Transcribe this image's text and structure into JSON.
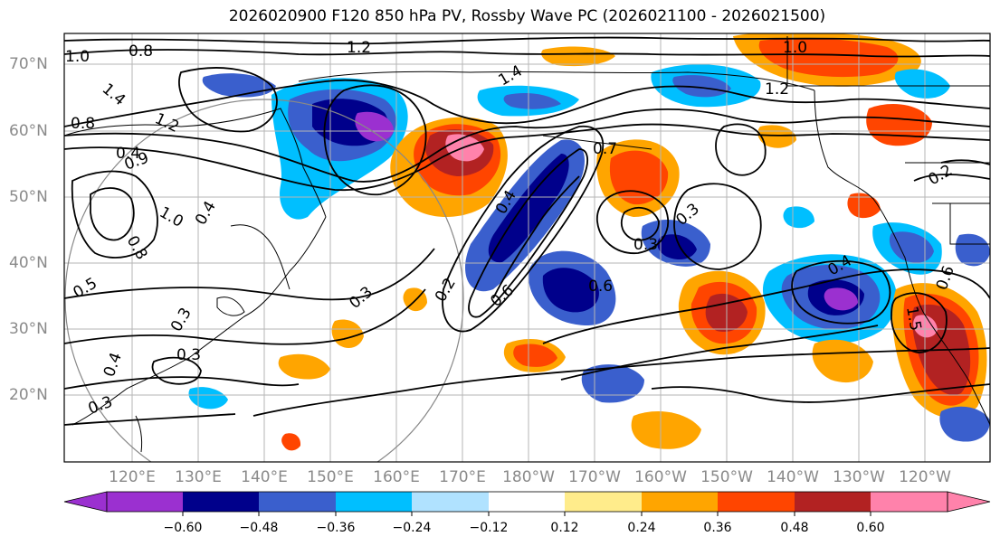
{
  "title": "2026020900 F120 850 hPa PV, Rossby Wave PC (2026021100 - 2026021500)",
  "lat_labels": [
    "70°N",
    "60°N",
    "50°N",
    "40°N",
    "30°N",
    "20°N"
  ],
  "lon_labels": [
    "120°E",
    "130°E",
    "140°E",
    "150°E",
    "160°E",
    "170°E",
    "180°W",
    "170°W",
    "160°W",
    "150°W",
    "140°W",
    "130°W",
    "120°W"
  ],
  "colorbar": {
    "tick_labels": [
      "−0.60",
      "−0.48",
      "−0.36",
      "−0.24",
      "−0.12",
      "0.12",
      "0.24",
      "0.36",
      "0.48",
      "0.60"
    ],
    "colors": [
      "#9b30d0",
      "#00008b",
      "#3a5fcd",
      "#00bfff",
      "#b0e2ff",
      "#ffffff",
      "#ffec8b",
      "#ffa500",
      "#ff4500",
      "#b22222",
      "#ff82ab",
      "#ff82ab"
    ]
  },
  "contour_labels": [
    "1.2",
    "1.0",
    "0.8",
    "1.4",
    "1.2",
    "0.8",
    "1.0",
    "0.9",
    "0.8",
    "0.4",
    "1.0",
    "0.5",
    "0.3",
    "0.3",
    "0.3",
    "0.3",
    "0.4",
    "0.3",
    "0.2",
    "0.4",
    "0.6",
    "0.6",
    "0.3",
    "0.4",
    "0.7",
    "1.4",
    "1.2",
    "0.2",
    "0.4",
    "1.5",
    "0.6"
  ]
}
